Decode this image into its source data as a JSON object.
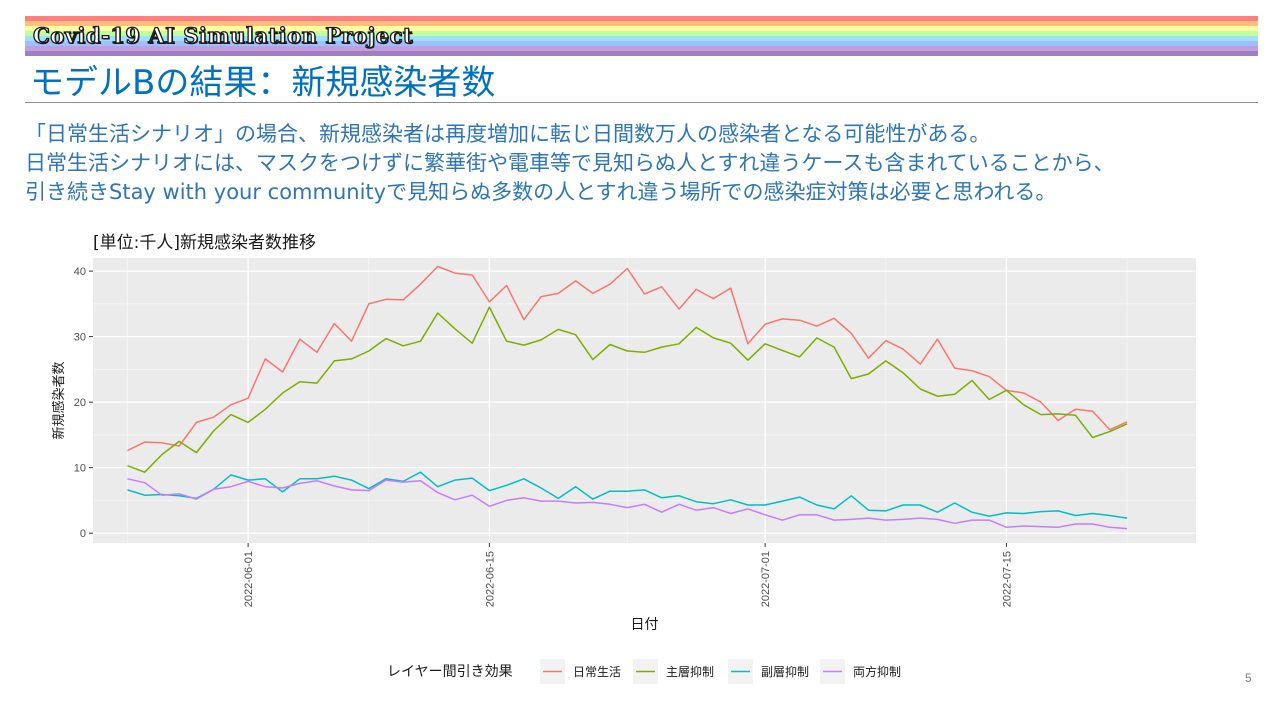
{
  "header": {
    "banner": "Covid-19 AI Simulation Project",
    "rainbow_colors": [
      "#ff7f7f",
      "#ffbf7f",
      "#ffff9f",
      "#bfff9f",
      "#9fdfff",
      "#9fbfff",
      "#bf9fdf",
      "#9f7fbf"
    ]
  },
  "slide": {
    "title": "モデルBの結果：新規感染者数",
    "paragraphs": [
      "「日常生活シナリオ」の場合、新規感染者は再度増加に転じ日間数万人の感染者となる可能性がある。",
      "日常生活シナリオには、マスクをつけずに繁華街や電車等で見知らぬ人とすれ違うケースも含まれていることから、",
      "引き続きStay with your communityで見知らぬ多数の人とすれ違う場所での感染症対策は必要と思われる。"
    ],
    "page_number": "5"
  },
  "chart_data": {
    "type": "line",
    "title": "[単位:千人]新規感染者数推移",
    "xlabel": "日付",
    "ylabel": "新規感染者数",
    "x_ticks": [
      "2022-06-01",
      "2022-06-15",
      "2022-07-01",
      "2022-07-15"
    ],
    "y_ticks": [
      "0",
      "10",
      "20",
      "30",
      "40"
    ],
    "ylim": [
      -1.5,
      42
    ],
    "xlim": [
      "2022-05-23",
      "2022-07-26"
    ],
    "grid": true,
    "legend_position": "bottom",
    "legend_title": "レイヤー間引き効果",
    "x": [
      "2022-05-25",
      "2022-05-26",
      "2022-05-27",
      "2022-05-28",
      "2022-05-29",
      "2022-05-30",
      "2022-05-31",
      "2022-06-01",
      "2022-06-02",
      "2022-06-03",
      "2022-06-04",
      "2022-06-05",
      "2022-06-06",
      "2022-06-07",
      "2022-06-08",
      "2022-06-09",
      "2022-06-10",
      "2022-06-11",
      "2022-06-12",
      "2022-06-13",
      "2022-06-14",
      "2022-06-15",
      "2022-06-16",
      "2022-06-17",
      "2022-06-18",
      "2022-06-19",
      "2022-06-20",
      "2022-06-21",
      "2022-06-22",
      "2022-06-23",
      "2022-06-24",
      "2022-06-25",
      "2022-06-26",
      "2022-06-27",
      "2022-06-28",
      "2022-06-29",
      "2022-06-30",
      "2022-07-01",
      "2022-07-02",
      "2022-07-03",
      "2022-07-04",
      "2022-07-05",
      "2022-07-06",
      "2022-07-07",
      "2022-07-08",
      "2022-07-09",
      "2022-07-10",
      "2022-07-11",
      "2022-07-12",
      "2022-07-13",
      "2022-07-14",
      "2022-07-15",
      "2022-07-16",
      "2022-07-17",
      "2022-07-18",
      "2022-07-19",
      "2022-07-20",
      "2022-07-21",
      "2022-07-22",
      "2022-07-23",
      "2022-07-24"
    ],
    "series": [
      {
        "name": "日常生活",
        "color": "#f8766d",
        "values": [
          12.6,
          13.9,
          13.8,
          13.3,
          16.9,
          17.7,
          19.6,
          20.6,
          26.6,
          24.6,
          29.6,
          27.6,
          32.0,
          29.3,
          35.0,
          35.7,
          35.6,
          38.0,
          40.7,
          39.7,
          39.4,
          35.3,
          37.8,
          32.6,
          36.1,
          36.6,
          38.5,
          36.6,
          38.0,
          40.4,
          36.5,
          37.6,
          34.2,
          37.2,
          35.8,
          37.4,
          28.9,
          31.9,
          32.7,
          32.5,
          31.6,
          32.8,
          30.5,
          26.7,
          29.4,
          28.1,
          25.8,
          29.6,
          25.2,
          24.8,
          23.9,
          21.8,
          21.4,
          20.0,
          17.2,
          18.9,
          18.6,
          15.8,
          17.0,
          null,
          null
        ]
      },
      {
        "name": "主層抑制",
        "color": "#7cae00",
        "values": [
          10.3,
          9.3,
          12.0,
          14.0,
          12.3,
          15.6,
          18.1,
          16.9,
          18.9,
          21.4,
          23.1,
          22.9,
          26.3,
          26.6,
          27.8,
          29.7,
          28.6,
          29.3,
          33.6,
          31.2,
          29.0,
          34.5,
          29.3,
          28.7,
          29.5,
          31.1,
          30.3,
          26.5,
          28.8,
          27.8,
          27.6,
          28.4,
          28.9,
          31.4,
          29.8,
          29.0,
          26.4,
          28.9,
          27.9,
          26.9,
          29.8,
          28.4,
          23.6,
          24.3,
          26.3,
          24.5,
          22.0,
          20.9,
          21.2,
          23.3,
          20.4,
          21.8,
          19.6,
          18.1,
          18.2,
          18.0,
          14.6,
          15.5,
          16.7,
          null,
          null
        ]
      },
      {
        "name": "副層抑制",
        "color": "#00bfc4",
        "values": [
          6.6,
          5.8,
          5.9,
          5.7,
          5.3,
          6.7,
          8.9,
          8.1,
          8.3,
          6.3,
          8.3,
          8.3,
          8.7,
          8.1,
          6.8,
          8.3,
          7.9,
          9.3,
          7.1,
          8.1,
          8.4,
          6.5,
          7.3,
          8.3,
          6.9,
          5.3,
          7.1,
          5.2,
          6.4,
          6.4,
          6.6,
          5.4,
          5.7,
          4.8,
          4.5,
          5.1,
          4.3,
          4.3,
          4.9,
          5.5,
          4.3,
          3.7,
          5.7,
          3.5,
          3.4,
          4.3,
          4.3,
          3.2,
          4.6,
          3.2,
          2.6,
          3.1,
          3.0,
          3.3,
          3.4,
          2.7,
          3.0,
          2.7,
          2.3,
          null,
          null
        ]
      },
      {
        "name": "両方抑制",
        "color": "#c77cff",
        "values": [
          8.3,
          7.7,
          5.8,
          6.0,
          5.2,
          6.7,
          7.1,
          7.9,
          7.1,
          6.9,
          7.6,
          8.0,
          7.2,
          6.6,
          6.5,
          8.1,
          7.8,
          8.0,
          6.2,
          5.1,
          5.8,
          4.1,
          5.0,
          5.4,
          4.9,
          4.9,
          4.6,
          4.7,
          4.4,
          3.9,
          4.4,
          3.2,
          4.4,
          3.5,
          3.9,
          3.0,
          3.7,
          2.8,
          2.0,
          2.8,
          2.8,
          2.0,
          2.1,
          2.3,
          2.0,
          2.1,
          2.3,
          2.1,
          1.5,
          2.0,
          2.0,
          0.9,
          1.1,
          1.0,
          0.9,
          1.4,
          1.4,
          0.9,
          0.7,
          null,
          null
        ]
      }
    ]
  }
}
